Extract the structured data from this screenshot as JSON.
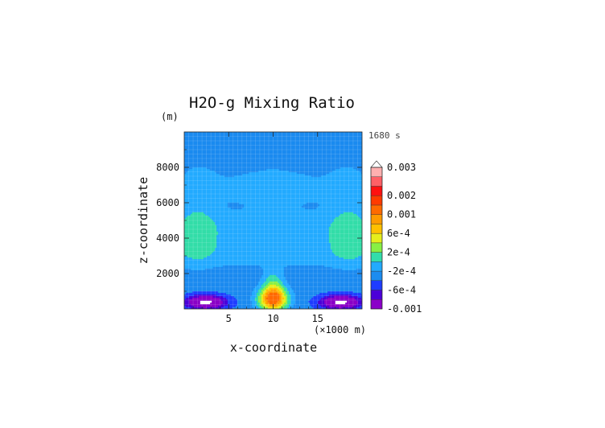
{
  "chart_data": {
    "type": "contour",
    "title": "H2O-g Mixing Ratio",
    "time_label": "1680 s",
    "xlabel": "x-coordinate",
    "x_units": "(×1000 m)",
    "ylabel": "z-coordinate",
    "y_units": "(m)",
    "xlim": [
      0,
      20
    ],
    "ylim": [
      0,
      10000
    ],
    "x_ticks": [
      5,
      10,
      15
    ],
    "y_ticks": [
      2000,
      4000,
      6000,
      8000
    ],
    "x_tick_labels": [
      "5",
      "10",
      "15"
    ],
    "y_tick_labels": [
      "2000",
      "4000",
      "6000",
      "8000"
    ],
    "grid": true,
    "colorbar": {
      "placement": "right",
      "levels": [
        -0.001,
        -0.0008,
        -0.0006,
        -0.0004,
        -0.0002,
        0,
        0.0002,
        0.0004,
        0.0006,
        0.0008,
        0.001,
        0.0015,
        0.002,
        0.0025,
        0.003
      ],
      "labels": [
        "0.003",
        "0.002",
        "0.001",
        "6e-4",
        "2e-4",
        "-2e-4",
        "-6e-4",
        "-0.001"
      ],
      "label_values": [
        0.003,
        0.002,
        0.001,
        0.0006,
        0.0002,
        -0.0002,
        -0.0006,
        -0.001
      ],
      "colors": [
        "#8b00c8",
        "#4b00d8",
        "#1e3cff",
        "#1c8cf0",
        "#22aaff",
        "#33ddaa",
        "#88f044",
        "#e6ee1c",
        "#ffc000",
        "#ff9a00",
        "#ff6a00",
        "#ff3a00",
        "#ff1010",
        "#ff6066",
        "#ffb0b0"
      ],
      "extend_max": true
    }
  }
}
